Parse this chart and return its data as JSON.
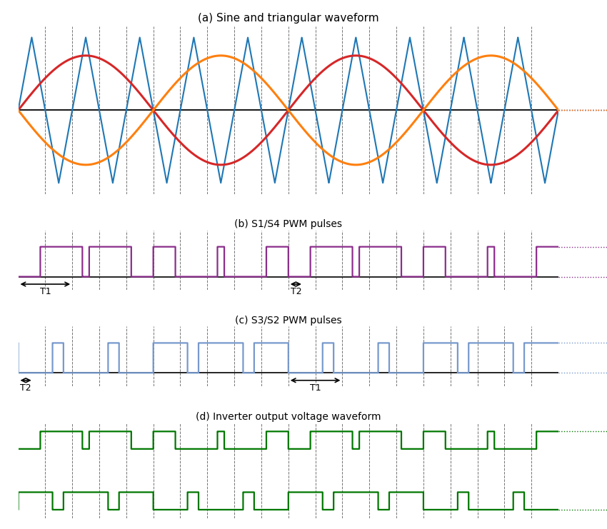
{
  "title_a": "(a) Sine and triangular waveform",
  "title_b": "(b) S1/S4 PWM pulses",
  "title_c": "(c) S3/S2 PWM pulses",
  "title_d": "(d) Inverter output voltage waveform",
  "tri_color": "#1f77b4",
  "sine1_color": "#d62728",
  "sine2_color": "#ff7f0e",
  "pwm_b_color": "#8B2D8B",
  "pwm_c_color": "#7799CC",
  "inv_color": "#007700",
  "background": "#ffffff",
  "carrier_freq": 5.0,
  "mod_freq": 1.0,
  "T": 2.0,
  "mod_amp": 0.75
}
